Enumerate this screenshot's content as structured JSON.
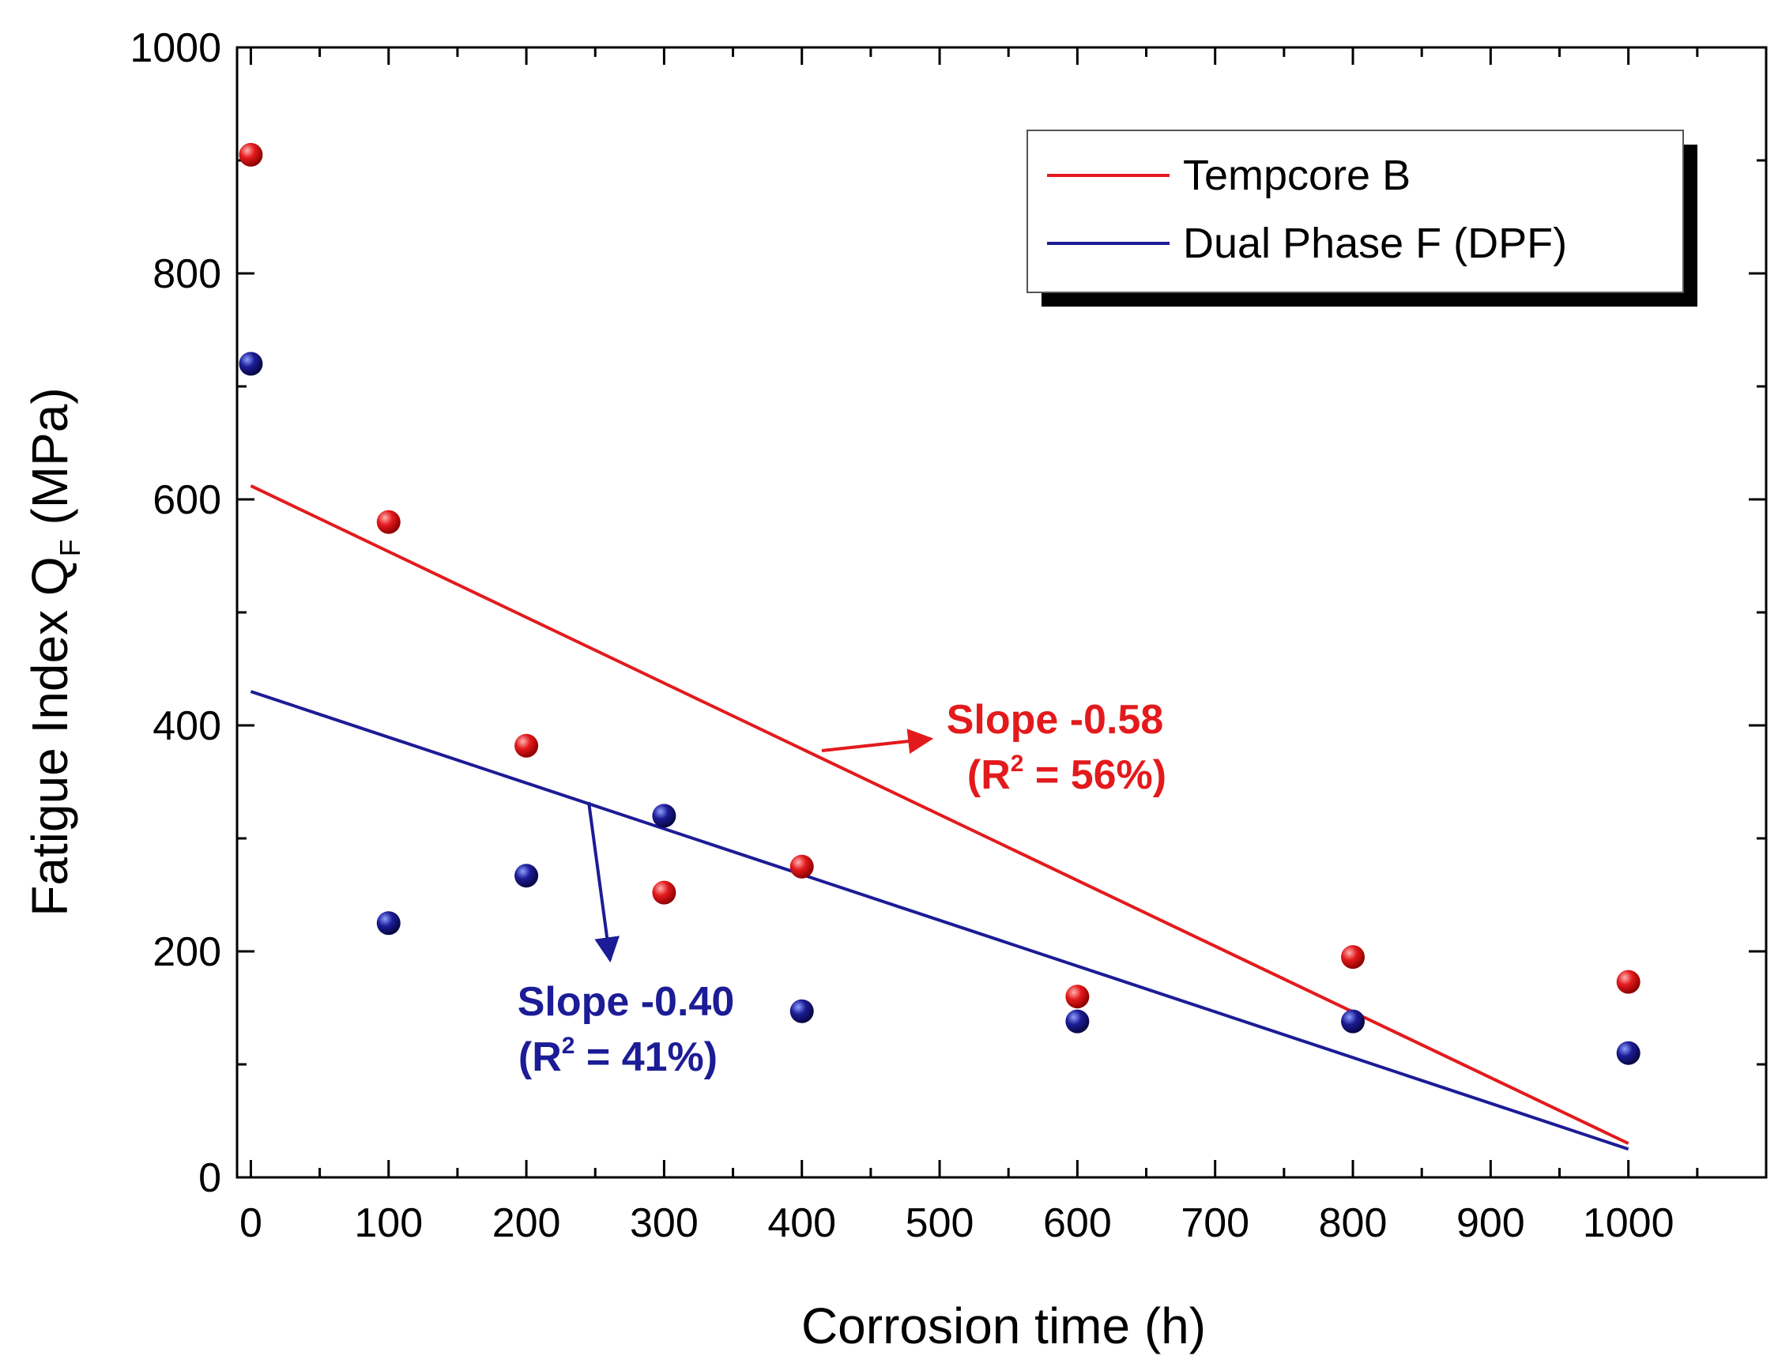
{
  "chart_data": {
    "type": "scatter",
    "xlabel": "Corrosion time (h)",
    "ylabel": {
      "prefix": "Fatigue Index Q",
      "subscript": "F",
      "suffix": " (MPa)"
    },
    "xlim": [
      -10,
      1100
    ],
    "ylim": [
      0,
      1000
    ],
    "x_ticks": [
      0,
      100,
      200,
      300,
      400,
      500,
      600,
      700,
      800,
      900,
      1000
    ],
    "y_ticks": [
      0,
      200,
      400,
      600,
      800,
      1000
    ],
    "x_minor_step": 50,
    "y_minor_step": 100,
    "grid": false,
    "legend_position": "top-right",
    "series": [
      {
        "name": "Tempcore B",
        "color": "#e31a1c",
        "points": [
          {
            "x": 0,
            "y": 905
          },
          {
            "x": 100,
            "y": 580
          },
          {
            "x": 200,
            "y": 382
          },
          {
            "x": 300,
            "y": 252
          },
          {
            "x": 400,
            "y": 275
          },
          {
            "x": 600,
            "y": 160
          },
          {
            "x": 800,
            "y": 195
          },
          {
            "x": 1000,
            "y": 173
          }
        ],
        "fit": {
          "x0": 0,
          "y0": 612,
          "x1": 1000,
          "y1": 30
        },
        "annotation": {
          "slope_text": "Slope -0.58",
          "r2_prefix": "(R",
          "r2_sup": "2",
          "r2_suffix": " = 56%)"
        }
      },
      {
        "name": "Dual Phase F (DPF)",
        "color": "#1c1c96",
        "points": [
          {
            "x": 0,
            "y": 720
          },
          {
            "x": 100,
            "y": 225
          },
          {
            "x": 200,
            "y": 267
          },
          {
            "x": 300,
            "y": 320
          },
          {
            "x": 400,
            "y": 147
          },
          {
            "x": 600,
            "y": 138
          },
          {
            "x": 800,
            "y": 138
          },
          {
            "x": 1000,
            "y": 110
          }
        ],
        "fit": {
          "x0": 0,
          "y0": 430,
          "x1": 1000,
          "y1": 25
        },
        "annotation": {
          "slope_text": "Slope -0.40",
          "r2_prefix": "(R",
          "r2_sup": "2",
          "r2_suffix": " = 41%)"
        }
      }
    ]
  }
}
